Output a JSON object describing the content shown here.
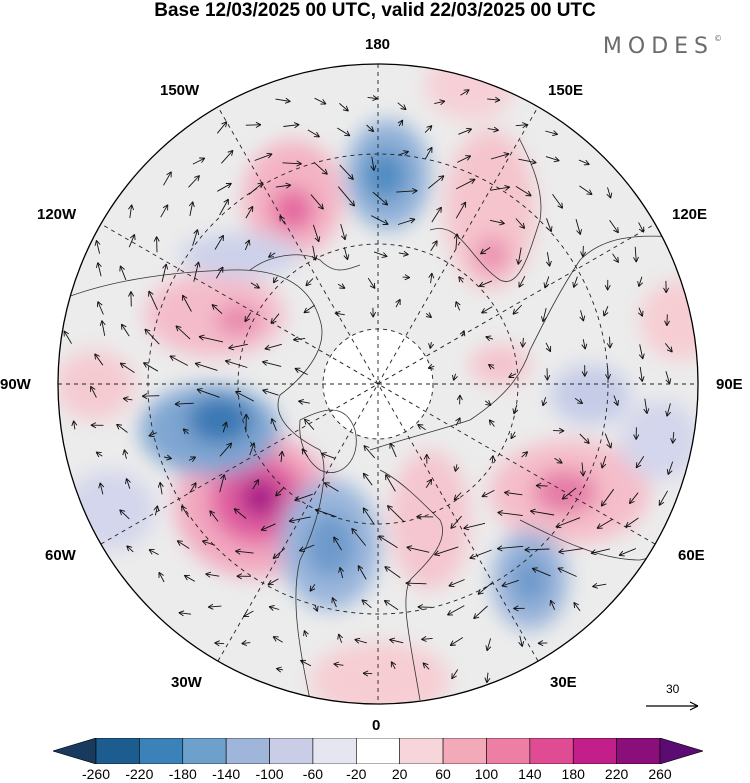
{
  "title": "Base 12/03/2025 00 UTC, valid 22/03/2025 00 UTC",
  "brand": "MODES",
  "brand_mark": "©",
  "longitude_labels": {
    "lon_180": "180",
    "lon_150w": "150W",
    "lon_150e": "150E",
    "lon_120w": "120W",
    "lon_120e": "120E",
    "lon_90w": "90W",
    "lon_90e": "90E",
    "lon_60w": "60W",
    "lon_60e": "60E",
    "lon_30w": "30W",
    "lon_30e": "30E",
    "lon_0": "0"
  },
  "reference_vector": {
    "label": "30"
  },
  "colorbar": {
    "ticks": [
      "-260",
      "-220",
      "-180",
      "-140",
      "-100",
      "-60",
      "-20",
      "20",
      "60",
      "100",
      "140",
      "180",
      "220",
      "260"
    ],
    "colors": [
      "#173a5e",
      "#1c5c8f",
      "#3b82b8",
      "#6ea0cc",
      "#9fb6da",
      "#c9cde6",
      "#e6e6f0",
      "#ffffff",
      "#f6d6da",
      "#f2aab8",
      "#ec7fa3",
      "#e04c93",
      "#c31f8a",
      "#8a0f7a",
      "#5c0b73"
    ]
  },
  "colors": {
    "land_overlay": "#e8e8e8",
    "coast": "#333333",
    "grid": "#222222",
    "arrow": "#111111"
  }
}
